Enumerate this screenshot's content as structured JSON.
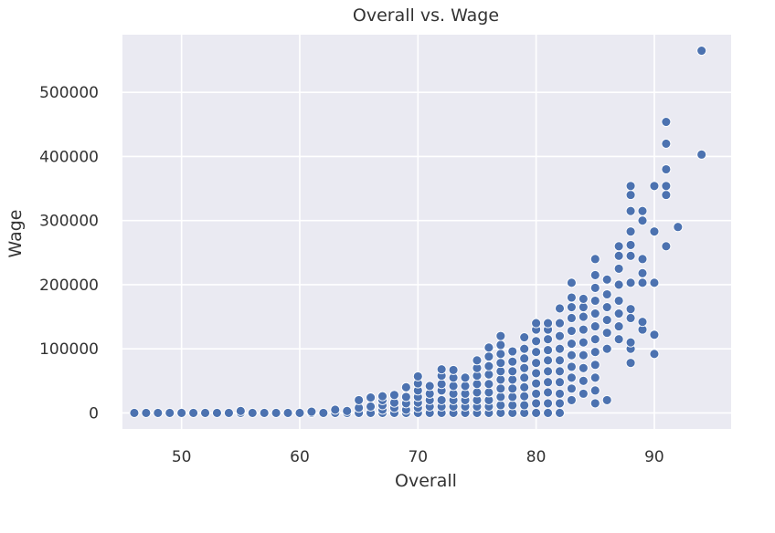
{
  "chart_data": {
    "type": "scatter",
    "title": "Overall vs. Wage",
    "xlabel": "Overall",
    "ylabel": "Wage",
    "xlim": [
      45,
      96.5
    ],
    "ylim": [
      -25000,
      590000
    ],
    "grid": true,
    "marker_color": "#4c72b0",
    "plot_background": "#eaeaf2",
    "x_ticks": [
      50,
      60,
      70,
      80,
      90
    ],
    "x_tick_labels": [
      "50",
      "60",
      "70",
      "80",
      "90"
    ],
    "y_ticks": [
      0,
      100000,
      200000,
      300000,
      400000,
      500000
    ],
    "y_tick_labels": [
      "0",
      "100000",
      "200000",
      "300000",
      "400000",
      "500000"
    ],
    "points": [
      [
        46,
        0
      ],
      [
        47,
        0
      ],
      [
        48,
        0
      ],
      [
        49,
        0
      ],
      [
        50,
        0
      ],
      [
        51,
        0
      ],
      [
        52,
        0
      ],
      [
        53,
        0
      ],
      [
        54,
        0
      ],
      [
        55,
        0
      ],
      [
        55,
        3000
      ],
      [
        56,
        0
      ],
      [
        57,
        0
      ],
      [
        58,
        0
      ],
      [
        59,
        0
      ],
      [
        60,
        0
      ],
      [
        61,
        0
      ],
      [
        61,
        2000
      ],
      [
        62,
        0
      ],
      [
        63,
        0
      ],
      [
        63,
        5000
      ],
      [
        64,
        0
      ],
      [
        64,
        3000
      ],
      [
        65,
        0
      ],
      [
        65,
        8000
      ],
      [
        65,
        20000
      ],
      [
        66,
        0
      ],
      [
        66,
        10000
      ],
      [
        66,
        24000
      ],
      [
        67,
        0
      ],
      [
        67,
        5000
      ],
      [
        67,
        12000
      ],
      [
        67,
        20000
      ],
      [
        67,
        26000
      ],
      [
        68,
        0
      ],
      [
        68,
        8000
      ],
      [
        68,
        16000
      ],
      [
        68,
        28000
      ],
      [
        69,
        0
      ],
      [
        69,
        5000
      ],
      [
        69,
        15000
      ],
      [
        69,
        25000
      ],
      [
        69,
        40000
      ],
      [
        70,
        0
      ],
      [
        70,
        8000
      ],
      [
        70,
        16000
      ],
      [
        70,
        25000
      ],
      [
        70,
        35000
      ],
      [
        70,
        46000
      ],
      [
        70,
        57000
      ],
      [
        71,
        0
      ],
      [
        71,
        10000
      ],
      [
        71,
        20000
      ],
      [
        71,
        30000
      ],
      [
        71,
        42000
      ],
      [
        72,
        0
      ],
      [
        72,
        10000
      ],
      [
        72,
        20000
      ],
      [
        72,
        35000
      ],
      [
        72,
        45000
      ],
      [
        72,
        58000
      ],
      [
        72,
        68000
      ],
      [
        73,
        0
      ],
      [
        73,
        10000
      ],
      [
        73,
        20000
      ],
      [
        73,
        30000
      ],
      [
        73,
        42000
      ],
      [
        73,
        55000
      ],
      [
        73,
        67000
      ],
      [
        74,
        0
      ],
      [
        74,
        10000
      ],
      [
        74,
        20000
      ],
      [
        74,
        30000
      ],
      [
        74,
        42000
      ],
      [
        74,
        55000
      ],
      [
        75,
        0
      ],
      [
        75,
        10000
      ],
      [
        75,
        20000
      ],
      [
        75,
        32000
      ],
      [
        75,
        45000
      ],
      [
        75,
        58000
      ],
      [
        75,
        70000
      ],
      [
        75,
        82000
      ],
      [
        76,
        0
      ],
      [
        76,
        10000
      ],
      [
        76,
        20000
      ],
      [
        76,
        32000
      ],
      [
        76,
        45000
      ],
      [
        76,
        60000
      ],
      [
        76,
        73000
      ],
      [
        76,
        88000
      ],
      [
        76,
        102000
      ],
      [
        77,
        0
      ],
      [
        77,
        12000
      ],
      [
        77,
        25000
      ],
      [
        77,
        38000
      ],
      [
        77,
        52000
      ],
      [
        77,
        65000
      ],
      [
        77,
        78000
      ],
      [
        77,
        92000
      ],
      [
        77,
        106000
      ],
      [
        77,
        120000
      ],
      [
        78,
        0
      ],
      [
        78,
        12000
      ],
      [
        78,
        25000
      ],
      [
        78,
        38000
      ],
      [
        78,
        52000
      ],
      [
        78,
        65000
      ],
      [
        78,
        80000
      ],
      [
        78,
        96000
      ],
      [
        79,
        0
      ],
      [
        79,
        12000
      ],
      [
        79,
        26000
      ],
      [
        79,
        40000
      ],
      [
        79,
        55000
      ],
      [
        79,
        70000
      ],
      [
        79,
        85000
      ],
      [
        79,
        100000
      ],
      [
        79,
        118000
      ],
      [
        80,
        0
      ],
      [
        80,
        15000
      ],
      [
        80,
        30000
      ],
      [
        80,
        46000
      ],
      [
        80,
        62000
      ],
      [
        80,
        78000
      ],
      [
        80,
        95000
      ],
      [
        80,
        112000
      ],
      [
        80,
        130000
      ],
      [
        80,
        140000
      ],
      [
        81,
        0
      ],
      [
        81,
        15000
      ],
      [
        81,
        32000
      ],
      [
        81,
        48000
      ],
      [
        81,
        65000
      ],
      [
        81,
        82000
      ],
      [
        81,
        98000
      ],
      [
        81,
        115000
      ],
      [
        81,
        130000
      ],
      [
        81,
        140000
      ],
      [
        82,
        0
      ],
      [
        82,
        15000
      ],
      [
        82,
        30000
      ],
      [
        82,
        48000
      ],
      [
        82,
        65000
      ],
      [
        82,
        82000
      ],
      [
        82,
        100000
      ],
      [
        82,
        120000
      ],
      [
        82,
        140000
      ],
      [
        82,
        163000
      ],
      [
        83,
        20000
      ],
      [
        83,
        38000
      ],
      [
        83,
        55000
      ],
      [
        83,
        72000
      ],
      [
        83,
        90000
      ],
      [
        83,
        108000
      ],
      [
        83,
        128000
      ],
      [
        83,
        148000
      ],
      [
        83,
        165000
      ],
      [
        83,
        180000
      ],
      [
        83,
        203000
      ],
      [
        84,
        30000
      ],
      [
        84,
        50000
      ],
      [
        84,
        70000
      ],
      [
        84,
        90000
      ],
      [
        84,
        110000
      ],
      [
        84,
        130000
      ],
      [
        84,
        150000
      ],
      [
        84,
        165000
      ],
      [
        84,
        178000
      ],
      [
        85,
        15000
      ],
      [
        85,
        35000
      ],
      [
        85,
        55000
      ],
      [
        85,
        75000
      ],
      [
        85,
        95000
      ],
      [
        85,
        115000
      ],
      [
        85,
        135000
      ],
      [
        85,
        155000
      ],
      [
        85,
        175000
      ],
      [
        85,
        195000
      ],
      [
        85,
        215000
      ],
      [
        85,
        240000
      ],
      [
        86,
        20000
      ],
      [
        86,
        100000
      ],
      [
        86,
        125000
      ],
      [
        86,
        145000
      ],
      [
        86,
        165000
      ],
      [
        86,
        185000
      ],
      [
        86,
        208000
      ],
      [
        87,
        115000
      ],
      [
        87,
        135000
      ],
      [
        87,
        155000
      ],
      [
        87,
        175000
      ],
      [
        87,
        200000
      ],
      [
        87,
        225000
      ],
      [
        87,
        245000
      ],
      [
        87,
        260000
      ],
      [
        88,
        78000
      ],
      [
        88,
        100000
      ],
      [
        88,
        110000
      ],
      [
        88,
        148000
      ],
      [
        88,
        162000
      ],
      [
        88,
        203000
      ],
      [
        88,
        245000
      ],
      [
        88,
        262000
      ],
      [
        88,
        283000
      ],
      [
        88,
        315000
      ],
      [
        88,
        340000
      ],
      [
        88,
        354000
      ],
      [
        89,
        130000
      ],
      [
        89,
        142000
      ],
      [
        89,
        203000
      ],
      [
        89,
        218000
      ],
      [
        89,
        240000
      ],
      [
        89,
        300000
      ],
      [
        89,
        315000
      ],
      [
        90,
        92000
      ],
      [
        90,
        122000
      ],
      [
        90,
        203000
      ],
      [
        90,
        283000
      ],
      [
        90,
        354000
      ],
      [
        91,
        260000
      ],
      [
        91,
        340000
      ],
      [
        91,
        354000
      ],
      [
        91,
        380000
      ],
      [
        91,
        420000
      ],
      [
        91,
        454000
      ],
      [
        92,
        290000
      ],
      [
        94,
        403000
      ],
      [
        94,
        565000
      ]
    ]
  }
}
